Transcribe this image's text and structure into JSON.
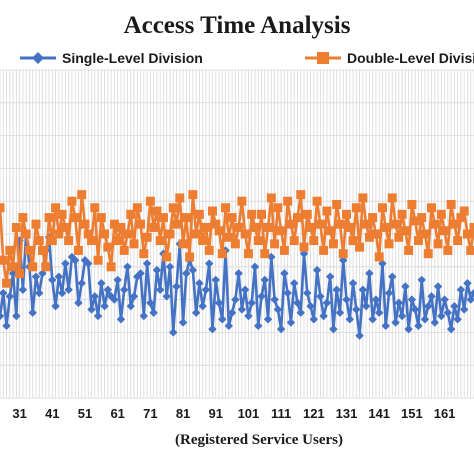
{
  "chart_data": {
    "type": "line",
    "title": "Access Time Analysis",
    "xlabel": "(Registered Service Users)",
    "ylabel": "",
    "legend_position": "top",
    "grid": true,
    "x_range": [
      25,
      170
    ],
    "ylim": [
      0,
      100
    ],
    "x_tick_labels": [
      "31",
      "41",
      "51",
      "61",
      "71",
      "81",
      "91",
      "101",
      "111",
      "121",
      "131",
      "141",
      "151",
      "161"
    ],
    "x": [
      25,
      26,
      27,
      28,
      29,
      30,
      31,
      32,
      33,
      34,
      35,
      36,
      37,
      38,
      39,
      40,
      41,
      42,
      43,
      44,
      45,
      46,
      47,
      48,
      49,
      50,
      51,
      52,
      53,
      54,
      55,
      56,
      57,
      58,
      59,
      60,
      61,
      62,
      63,
      64,
      65,
      66,
      67,
      68,
      69,
      70,
      71,
      72,
      73,
      74,
      75,
      76,
      77,
      78,
      79,
      80,
      81,
      82,
      83,
      84,
      85,
      86,
      87,
      88,
      89,
      90,
      91,
      92,
      93,
      94,
      95,
      96,
      97,
      98,
      99,
      100,
      101,
      102,
      103,
      104,
      105,
      106,
      107,
      108,
      109,
      110,
      111,
      112,
      113,
      114,
      115,
      116,
      117,
      118,
      119,
      120,
      121,
      122,
      123,
      124,
      125,
      126,
      127,
      128,
      129,
      130,
      131,
      132,
      133,
      134,
      135,
      136,
      137,
      138,
      139,
      140,
      141,
      142,
      143,
      144,
      145,
      146,
      147,
      148,
      149,
      150,
      151,
      152,
      153,
      154,
      155,
      156,
      157,
      158,
      159,
      160,
      161,
      162,
      163,
      164,
      165,
      166,
      167,
      168,
      169,
      170
    ],
    "series": [
      {
        "name": "Single-Level Division",
        "color": "#4472C4",
        "marker": "diamond",
        "values": [
          25,
          32,
          22,
          31,
          38,
          25,
          48,
          33,
          50,
          40,
          26,
          37,
          32,
          38,
          45,
          49,
          36,
          28,
          37,
          32,
          41,
          33,
          43,
          42,
          29,
          35,
          42,
          41,
          27,
          31,
          25,
          35,
          28,
          33,
          31,
          30,
          36,
          24,
          33,
          40,
          28,
          31,
          37,
          38,
          25,
          41,
          29,
          26,
          39,
          33,
          44,
          31,
          40,
          20,
          34,
          47,
          23,
          38,
          42,
          39,
          26,
          35,
          28,
          33,
          41,
          21,
          36,
          29,
          24,
          45,
          22,
          26,
          30,
          38,
          27,
          33,
          25,
          29,
          40,
          22,
          31,
          36,
          24,
          43,
          30,
          27,
          21,
          38,
          32,
          23,
          35,
          29,
          26,
          44,
          32,
          28,
          24,
          39,
          31,
          25,
          29,
          37,
          21,
          33,
          26,
          42,
          30,
          24,
          35,
          27,
          19,
          33,
          28,
          38,
          24,
          30,
          26,
          41,
          22,
          32,
          37,
          23,
          29,
          25,
          34,
          21,
          30,
          27,
          22,
          36,
          24,
          28,
          31,
          23,
          34,
          25,
          30,
          26,
          21,
          28,
          24,
          33,
          27,
          35,
          30,
          32
        ]
      },
      {
        "name": "Double-Level Division",
        "color": "#ED7D31",
        "marker": "square",
        "values": [
          58,
          42,
          35,
          45,
          40,
          52,
          38,
          55,
          50,
          45,
          40,
          53,
          48,
          45,
          40,
          55,
          48,
          58,
          50,
          56,
          52,
          48,
          60,
          55,
          45,
          62,
          53,
          50,
          48,
          58,
          42,
          55,
          50,
          46,
          40,
          53,
          48,
          52,
          45,
          50,
          56,
          47,
          58,
          53,
          44,
          49,
          60,
          52,
          57,
          48,
          55,
          43,
          50,
          58,
          53,
          61,
          47,
          55,
          43,
          62,
          50,
          56,
          48,
          52,
          45,
          57,
          53,
          51,
          44,
          58,
          49,
          55,
          47,
          52,
          60,
          50,
          44,
          56,
          52,
          48,
          56,
          44,
          52,
          61,
          47,
          58,
          51,
          45,
          60,
          53,
          48,
          55,
          62,
          46,
          56,
          52,
          48,
          60,
          53,
          45,
          57,
          51,
          47,
          59,
          53,
          44,
          56,
          52,
          48,
          58,
          46,
          61,
          53,
          49,
          55,
          50,
          43,
          58,
          52,
          47,
          61,
          53,
          49,
          56,
          51,
          45,
          59,
          54,
          48,
          55,
          50,
          44,
          58,
          53,
          47,
          56,
          51,
          45,
          59,
          53,
          48,
          55,
          57,
          50,
          45,
          52
        ]
      }
    ]
  }
}
